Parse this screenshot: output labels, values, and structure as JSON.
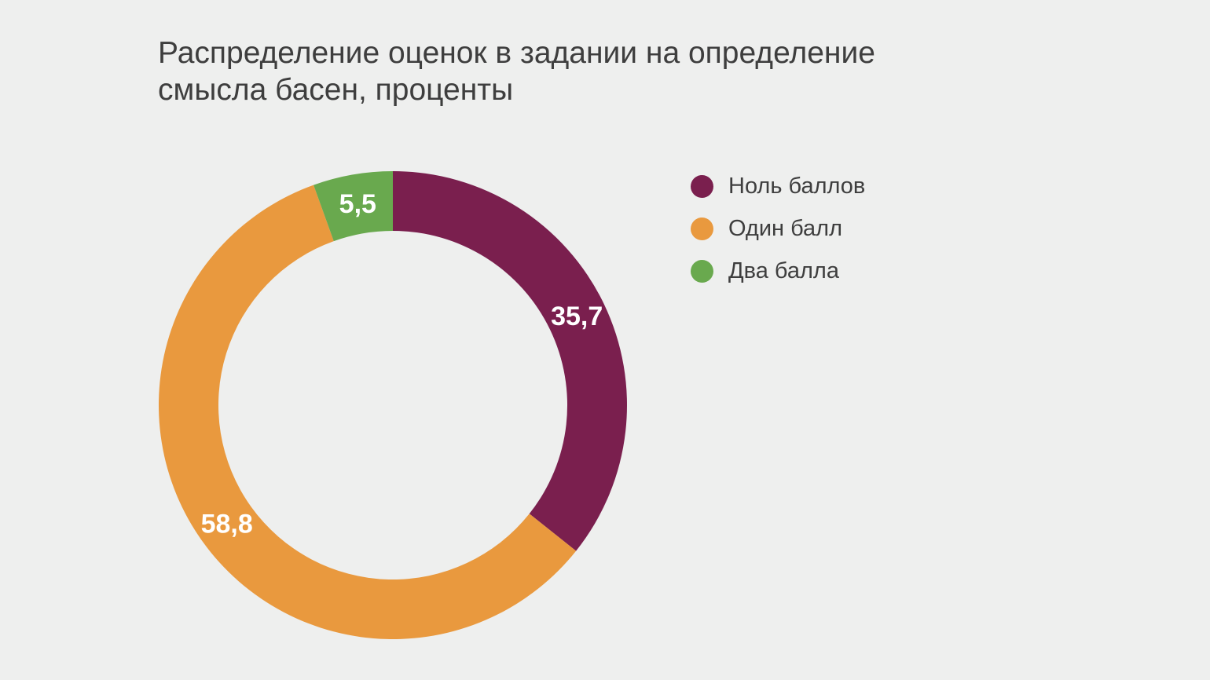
{
  "page": {
    "background_color": "#EEEFEE",
    "title_lines": [
      "Распределение оценок в задании на определение",
      "смысла басен, проценты"
    ]
  },
  "legend": {
    "items": [
      {
        "label": "Ноль баллов",
        "color": "#7A1F4E"
      },
      {
        "label": "Один балл",
        "color": "#E9993E"
      },
      {
        "label": "Два балла",
        "color": "#69A94E"
      }
    ]
  },
  "chart_data": {
    "type": "pie",
    "subtype": "donut",
    "title": "Распределение оценок в задании на определение смысла басен, проценты",
    "units": "проценты",
    "categories": [
      "Ноль баллов",
      "Один балл",
      "Два балла"
    ],
    "values": [
      35.7,
      58.8,
      5.5
    ],
    "value_labels": [
      "35,7",
      "58,8",
      "5,5"
    ],
    "colors": [
      "#7A1F4E",
      "#E9993E",
      "#69A94E"
    ],
    "label_color": "#FFFFFF",
    "start_angle_deg": 0,
    "direction": "clockwise",
    "inner_radius_ratio": 0.745,
    "legend_position": "right",
    "grid": false
  }
}
